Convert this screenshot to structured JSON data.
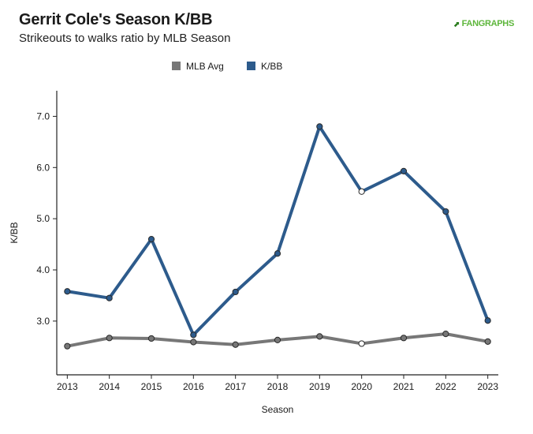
{
  "header": {
    "title": "Gerrit Cole's Season K/BB",
    "subtitle": "Strikeouts to walks ratio by MLB Season",
    "logo_text": "FANGRAPHS"
  },
  "chart_data": {
    "type": "line",
    "title": "Gerrit Cole's Season K/BB",
    "subtitle": "Strikeouts to walks ratio by MLB Season",
    "xlabel": "Season",
    "ylabel": "K/BB",
    "x": [
      2013,
      2014,
      2015,
      2016,
      2017,
      2018,
      2019,
      2020,
      2021,
      2022,
      2023
    ],
    "x_tick_labels": [
      "2013",
      "2014",
      "2015",
      "2016",
      "2017",
      "2018",
      "2019",
      "2020",
      "2021",
      "2022",
      "2023"
    ],
    "y_tick_labels": [
      "3.0",
      "4.0",
      "5.0",
      "6.0",
      "7.0"
    ],
    "y_ticks": [
      3.0,
      4.0,
      5.0,
      6.0,
      7.0
    ],
    "ylim": [
      1.95,
      7.5
    ],
    "xlim": [
      2012.75,
      2023.25
    ],
    "grid": false,
    "legend_position": "top-center",
    "series": [
      {
        "name": "MLB Avg",
        "color": "#777777",
        "values": [
          2.51,
          2.67,
          2.66,
          2.59,
          2.54,
          2.63,
          2.7,
          2.56,
          2.67,
          2.75,
          2.6
        ],
        "hollow_points": [
          2020
        ]
      },
      {
        "name": "K/BB",
        "color": "#2d5b8c",
        "values": [
          3.58,
          3.45,
          4.6,
          2.73,
          3.57,
          4.32,
          6.8,
          5.53,
          5.93,
          5.14,
          3.01
        ],
        "hollow_points": [
          2020
        ]
      }
    ]
  }
}
